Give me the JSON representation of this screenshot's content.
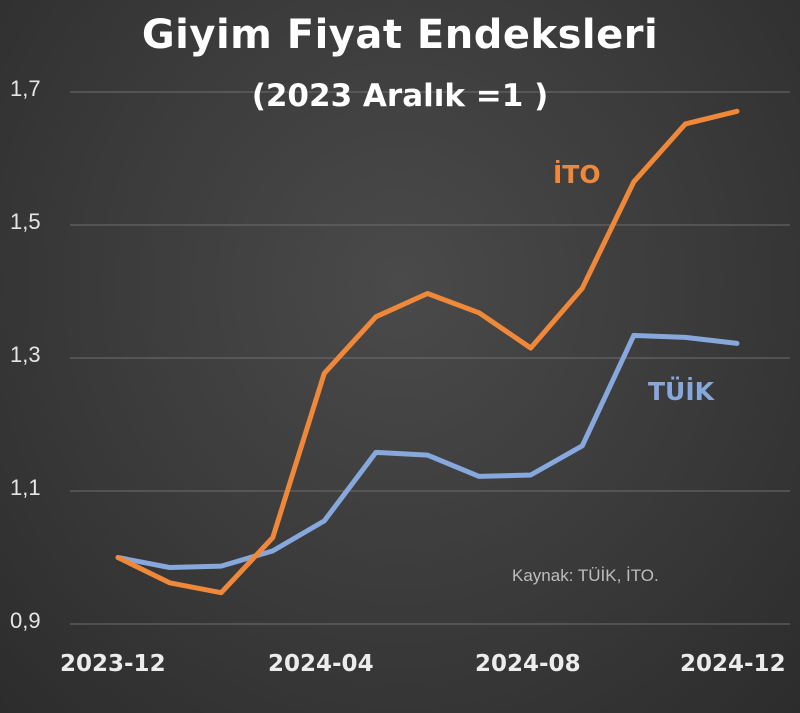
{
  "chart_data": {
    "type": "line",
    "title": "Giyim Fiyat Endeksleri",
    "subtitle": "(2023 Aralık =1 )",
    "note": "Kaynak: TÜİK, İTO.",
    "x": [
      "2023-12",
      "2024-01",
      "2024-02",
      "2024-03",
      "2024-04",
      "2024-05",
      "2024-06",
      "2024-07",
      "2024-08",
      "2024-09",
      "2024-10",
      "2024-11",
      "2024-12"
    ],
    "xticks": [
      "2023-12",
      "2024-04",
      "2024-08",
      "2024-12"
    ],
    "yticks": [
      "0,9",
      "1,1",
      "1,3",
      "1,5",
      "1,7"
    ],
    "ylim": [
      0.9,
      1.7
    ],
    "grid": true,
    "series": [
      {
        "name": "İTO",
        "color": "#f0883a",
        "values": [
          1.0,
          0.962,
          0.947,
          1.03,
          1.277,
          1.362,
          1.397,
          1.368,
          1.315,
          1.405,
          1.565,
          1.652,
          1.671
        ]
      },
      {
        "name": "TÜİK",
        "color": "#86a8dc",
        "values": [
          1.0,
          0.985,
          0.987,
          1.01,
          1.055,
          1.158,
          1.154,
          1.122,
          1.124,
          1.168,
          1.334,
          1.331,
          1.322
        ]
      }
    ]
  }
}
